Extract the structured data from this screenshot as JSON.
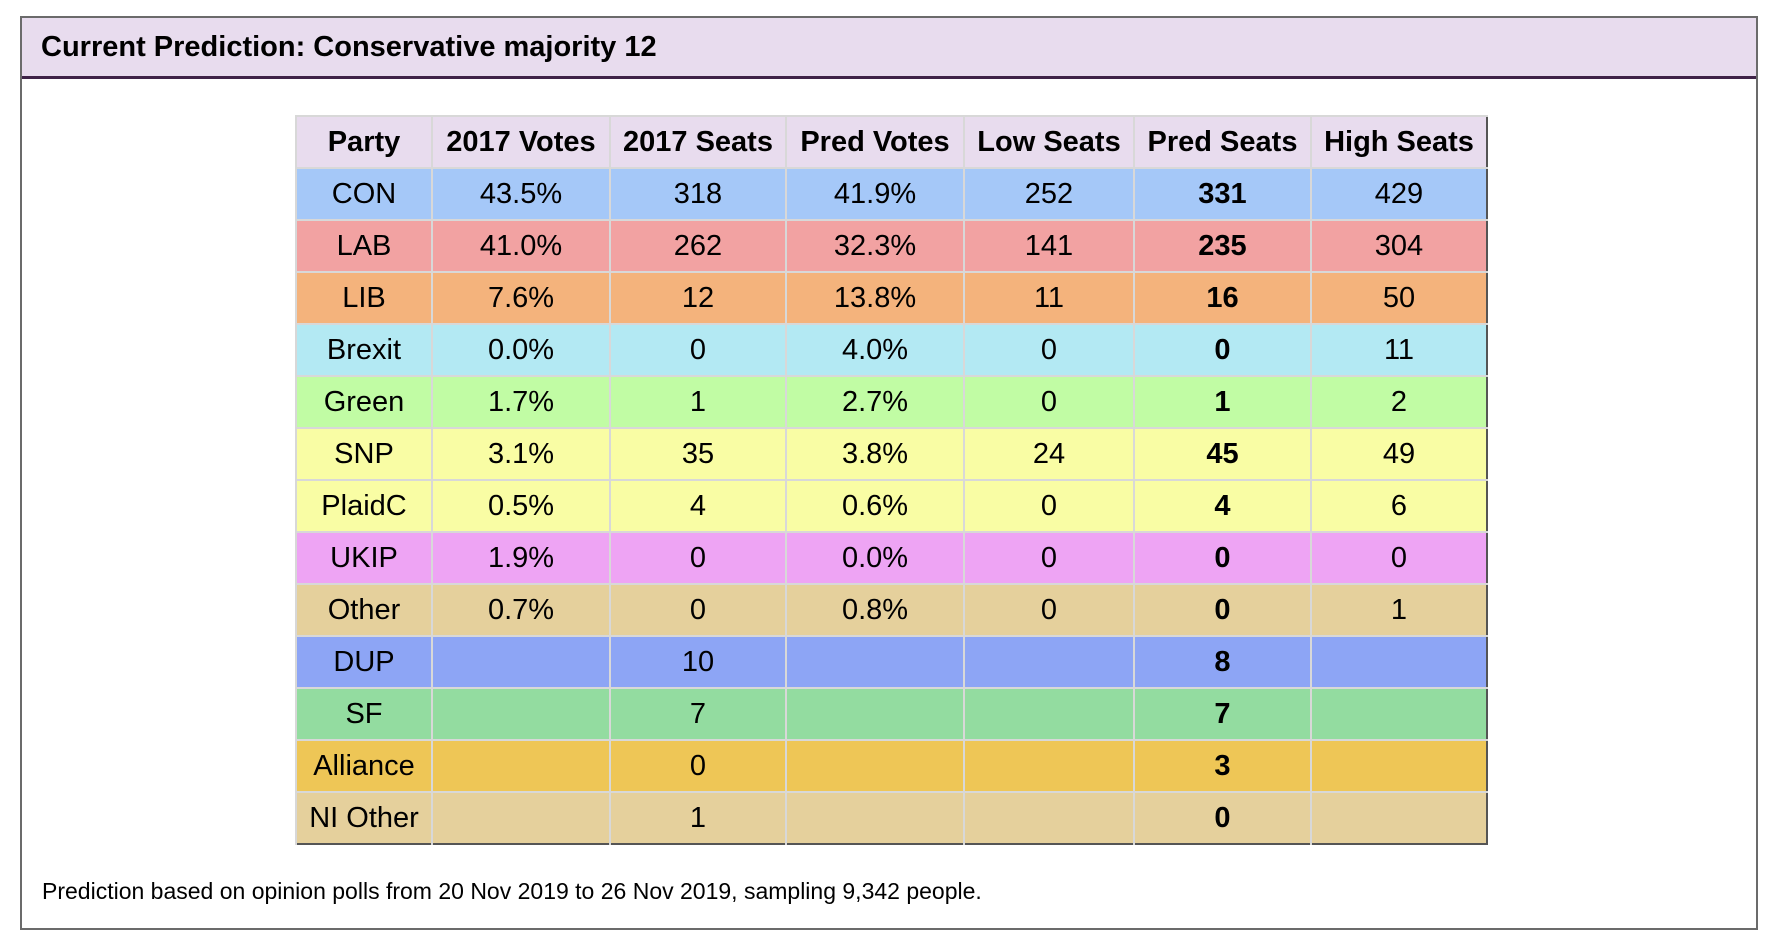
{
  "header": {
    "title": "Current Prediction: Conservative majority 12"
  },
  "table": {
    "columns": [
      "Party",
      "2017 Votes",
      "2017 Seats",
      "Pred Votes",
      "Low Seats",
      "Pred Seats",
      "High Seats"
    ],
    "rows": [
      {
        "party": "CON",
        "votes_2017": "43.5%",
        "seats_2017": "318",
        "pred_votes": "41.9%",
        "low_seats": "252",
        "pred_seats": "331",
        "high_seats": "429",
        "color": "#a5c8f8"
      },
      {
        "party": "LAB",
        "votes_2017": "41.0%",
        "seats_2017": "262",
        "pred_votes": "32.3%",
        "low_seats": "141",
        "pred_seats": "235",
        "high_seats": "304",
        "color": "#f2a2a2"
      },
      {
        "party": "LIB",
        "votes_2017": "7.6%",
        "seats_2017": "12",
        "pred_votes": "13.8%",
        "low_seats": "11",
        "pred_seats": "16",
        "high_seats": "50",
        "color": "#f4b37c"
      },
      {
        "party": "Brexit",
        "votes_2017": "0.0%",
        "seats_2017": "0",
        "pred_votes": "4.0%",
        "low_seats": "0",
        "pred_seats": "0",
        "high_seats": "11",
        "color": "#b3e9f3"
      },
      {
        "party": "Green",
        "votes_2017": "1.7%",
        "seats_2017": "1",
        "pred_votes": "2.7%",
        "low_seats": "0",
        "pred_seats": "1",
        "high_seats": "2",
        "color": "#c1fca4"
      },
      {
        "party": "SNP",
        "votes_2017": "3.1%",
        "seats_2017": "35",
        "pred_votes": "3.8%",
        "low_seats": "24",
        "pred_seats": "45",
        "high_seats": "49",
        "color": "#f9fda4"
      },
      {
        "party": "PlaidC",
        "votes_2017": "0.5%",
        "seats_2017": "4",
        "pred_votes": "0.6%",
        "low_seats": "0",
        "pred_seats": "4",
        "high_seats": "6",
        "color": "#f9fda4"
      },
      {
        "party": "UKIP",
        "votes_2017": "1.9%",
        "seats_2017": "0",
        "pred_votes": "0.0%",
        "low_seats": "0",
        "pred_seats": "0",
        "high_seats": "0",
        "color": "#eea4f4"
      },
      {
        "party": "Other",
        "votes_2017": "0.7%",
        "seats_2017": "0",
        "pred_votes": "0.8%",
        "low_seats": "0",
        "pred_seats": "0",
        "high_seats": "1",
        "color": "#e5d09c"
      },
      {
        "party": "DUP",
        "votes_2017": "",
        "seats_2017": "10",
        "pred_votes": "",
        "low_seats": "",
        "pred_seats": "8",
        "high_seats": "",
        "color": "#8da5f5"
      },
      {
        "party": "SF",
        "votes_2017": "",
        "seats_2017": "7",
        "pred_votes": "",
        "low_seats": "",
        "pred_seats": "7",
        "high_seats": "",
        "color": "#93dca0"
      },
      {
        "party": "Alliance",
        "votes_2017": "",
        "seats_2017": "0",
        "pred_votes": "",
        "low_seats": "",
        "pred_seats": "3",
        "high_seats": "",
        "color": "#eec656"
      },
      {
        "party": "NI Other",
        "votes_2017": "",
        "seats_2017": "1",
        "pred_votes": "",
        "low_seats": "",
        "pred_seats": "0",
        "high_seats": "",
        "color": "#e5d09c"
      }
    ]
  },
  "footnote": "Prediction based on opinion polls from 20 Nov 2019 to 26 Nov 2019, sampling 9,342 people.",
  "colors": {
    "header_bg": "#e8dcee",
    "header_rule": "#3f2248"
  }
}
